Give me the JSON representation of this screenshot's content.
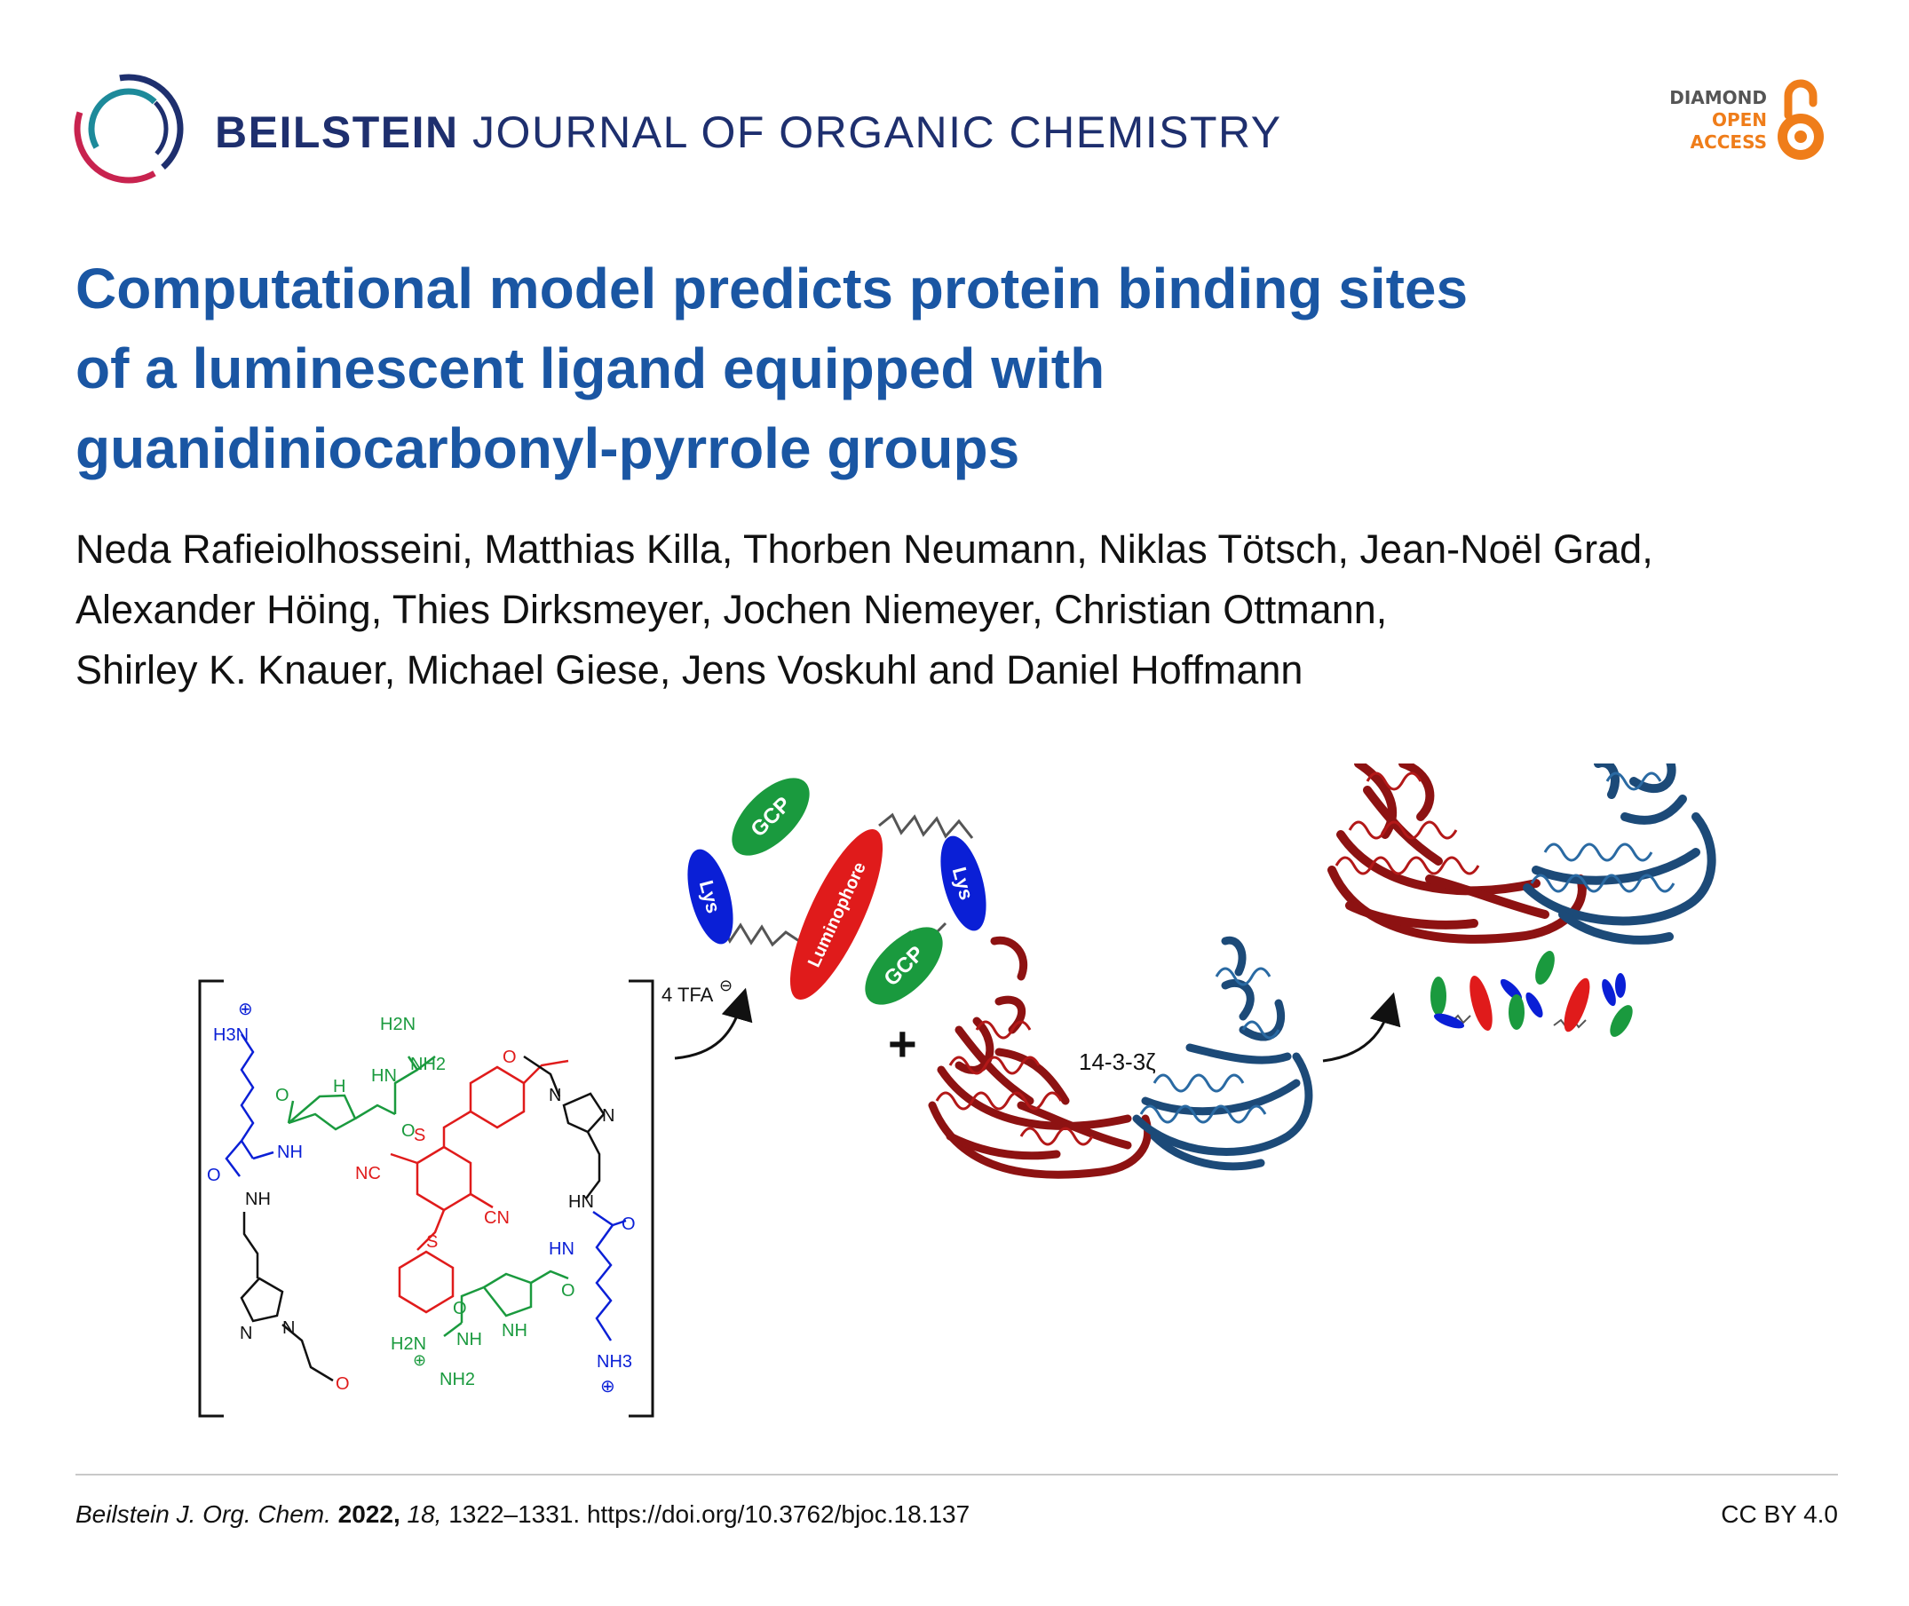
{
  "journal": {
    "name_bold": "BEILSTEIN",
    "name_rest": "JOURNAL OF ORGANIC CHEMISTRY",
    "logo": "beilstein-ring-logo"
  },
  "open_access": {
    "line1": "DIAMOND",
    "line2": "OPEN",
    "line3": "ACCESS",
    "icon": "open-lock-icon"
  },
  "title_lines": [
    "Computational model predicts protein binding sites",
    "of a luminescent ligand equipped with",
    "guanidiniocarbonyl-pyrrole groups"
  ],
  "authors_lines": [
    "Neda Rafieiolhosseini, Matthias Killa, Thorben Neumann, Niklas Tötsch, Jean-Noël Grad,",
    "Alexander Höing, Thies Dirksmeyer, Jochen Niemeyer, Christian Ottmann,",
    "Shirley K. Knauer, Michael Giese, Jens Voskuhl and Daniel Hoffmann"
  ],
  "figure": {
    "counterion": "4 TFA",
    "counterion_charge": "⊖",
    "plus": "+",
    "protein_label": "14-3-3ζ",
    "labels": {
      "gcp": "GCP",
      "lys": "Lys",
      "luminophore": "Luminophore"
    },
    "molecule": {
      "ammonium_top": "H3N",
      "ammonium_bottom": "NH3",
      "guanidine_top_a": "H2N",
      "guanidine_top_b": "NH2",
      "guanidine_bottom_a": "H2N",
      "guanidine_bottom_b": "NH2",
      "nitrile": "NC",
      "nitrile_b": "CN",
      "sulfur": "S",
      "oxygen": "O",
      "nh": "NH",
      "hn": "HN",
      "h": "H",
      "n": "N",
      "plus_charge": "⊕"
    },
    "colors": {
      "lys_blue": "#0a1fd6",
      "gcp_green": "#1a9a3e",
      "luminophore_red": "#e01b1b",
      "protein_red": "#8d1212",
      "protein_blue": "#1c4a78",
      "linker": "#555555"
    }
  },
  "citation": {
    "journal_abbrev": "Beilstein J. Org. Chem.",
    "year": "2022,",
    "volume": "18,",
    "pages_doi": "1322–1331. https://doi.org/10.3762/bjoc.18.137"
  },
  "license": "CC BY 4.0"
}
